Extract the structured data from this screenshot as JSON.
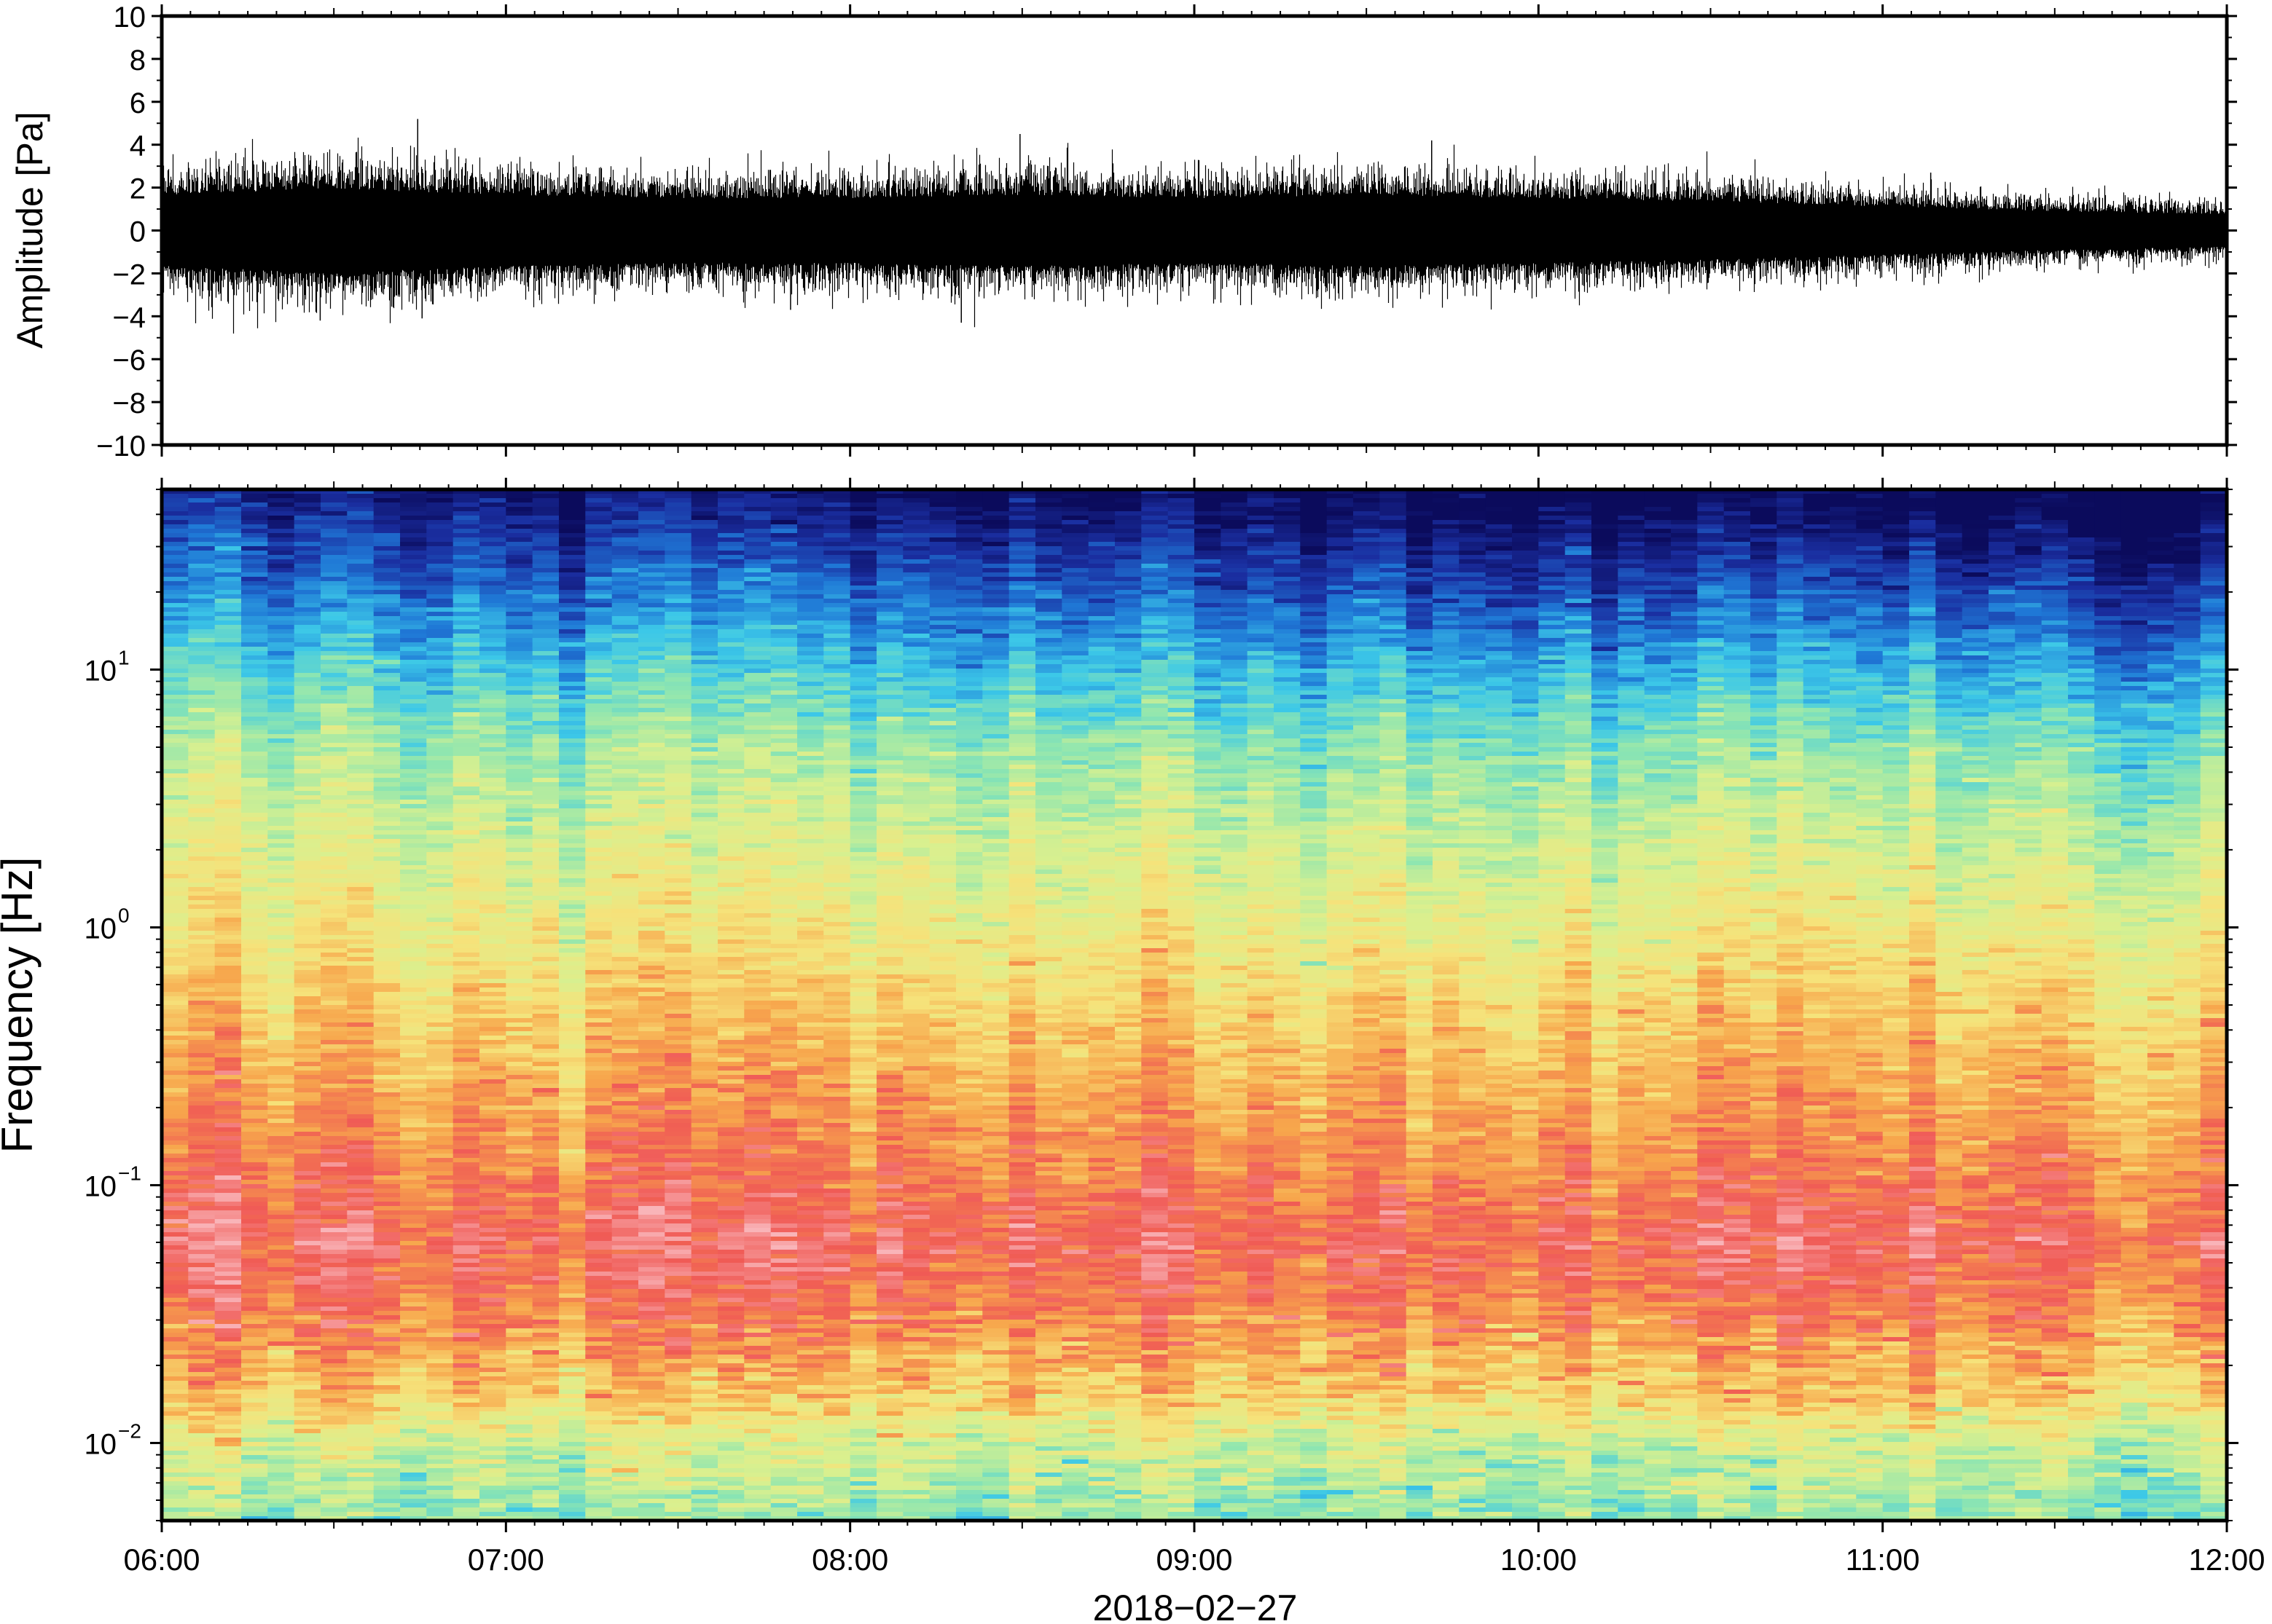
{
  "chart_data": [
    {
      "type": "line",
      "title": "",
      "xlabel": "",
      "ylabel": "Amplitude [Pa]",
      "xlim": [
        "06:00",
        "12:00"
      ],
      "ylim": [
        -10,
        10
      ],
      "yticks": [
        -10,
        -8,
        -6,
        -4,
        -2,
        0,
        2,
        4,
        6,
        8,
        10
      ],
      "ytick_labels": [
        "−10",
        "−8",
        "−6",
        "−4",
        "−2",
        "0",
        "2",
        "4",
        "6",
        "8",
        "10"
      ],
      "series": [
        {
          "color": "#000000",
          "envelope_times": [
            "06:00",
            "06:30",
            "07:00",
            "07:30",
            "08:00",
            "08:30",
            "09:00",
            "09:30",
            "10:00",
            "10:30",
            "11:00",
            "11:30",
            "12:00"
          ],
          "envelope_amplitude_pa": [
            2.2,
            2.6,
            2.2,
            2.0,
            2.0,
            2.2,
            2.0,
            2.2,
            2.0,
            1.8,
            1.5,
            1.2,
            1.0
          ],
          "notable_peaks": [
            {
              "time": "06:45",
              "value": 5.2
            },
            {
              "time": "06:45",
              "value": -4.1
            },
            {
              "time": "06:28",
              "value": -4.2
            },
            {
              "time": "08:19",
              "value": -4.3
            },
            {
              "time": "08:30",
              "value": 4.5
            },
            {
              "time": "09:41",
              "value": 4.2
            },
            {
              "time": "07:50",
              "value": -3.7
            },
            {
              "time": "11:08",
              "value": 2.7
            }
          ]
        }
      ]
    },
    {
      "type": "heatmap",
      "title": "",
      "xlabel": "2018−02−27",
      "ylabel": "Frequency [Hz]",
      "xlim": [
        "06:00",
        "12:00"
      ],
      "ylim": [
        0.005,
        50
      ],
      "y_scale": "log",
      "yticks": [
        {
          "value": 0.01,
          "base": "10",
          "exp": "−2"
        },
        {
          "value": 0.1,
          "base": "10",
          "exp": "−1"
        },
        {
          "value": 1,
          "base": "10",
          "exp": "0"
        },
        {
          "value": 10,
          "base": "10",
          "exp": "1"
        }
      ],
      "xticks": [
        "06:00",
        "07:00",
        "08:00",
        "09:00",
        "10:00",
        "11:00",
        "12:00"
      ],
      "colormap": [
        "#0b0b5c",
        "#1a2ea0",
        "#1f78d6",
        "#3cc8e8",
        "#8fe6b0",
        "#d9f08f",
        "#f6e27a",
        "#f7a64c",
        "#f05a55",
        "#f9b4b8"
      ],
      "columns": 78,
      "description_profile": {
        "freq_hz": [
          50,
          30,
          15,
          10,
          5,
          2,
          1,
          0.5,
          0.2,
          0.1,
          0.06,
          0.03,
          0.015,
          0.01,
          0.005
        ],
        "level": [
          0.05,
          0.15,
          0.28,
          0.36,
          0.48,
          0.57,
          0.62,
          0.7,
          0.78,
          0.84,
          0.9,
          0.82,
          0.7,
          0.55,
          0.45
        ],
        "late_high_freq_attenuation": 0.12
      }
    }
  ]
}
